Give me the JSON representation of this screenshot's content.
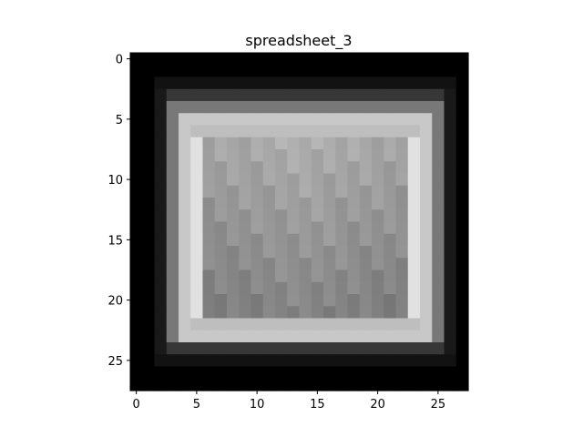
{
  "chart_data": {
    "type": "heatmap",
    "title": "spreadsheet_3",
    "xlabel": "",
    "ylabel": "",
    "colormap": "gray",
    "xlim": [
      -0.5,
      27.5
    ],
    "ylim": [
      27.5,
      -0.5
    ],
    "xticks": [
      0,
      5,
      10,
      15,
      20,
      25
    ],
    "xtick_labels": [
      "0",
      "5",
      "10",
      "15",
      "20",
      "25"
    ],
    "yticks": [
      0,
      5,
      10,
      15,
      20,
      25
    ],
    "ytick_labels": [
      "0",
      "5",
      "10",
      "15",
      "20",
      "25"
    ],
    "grid": false,
    "shape": [
      28,
      28
    ]
  }
}
